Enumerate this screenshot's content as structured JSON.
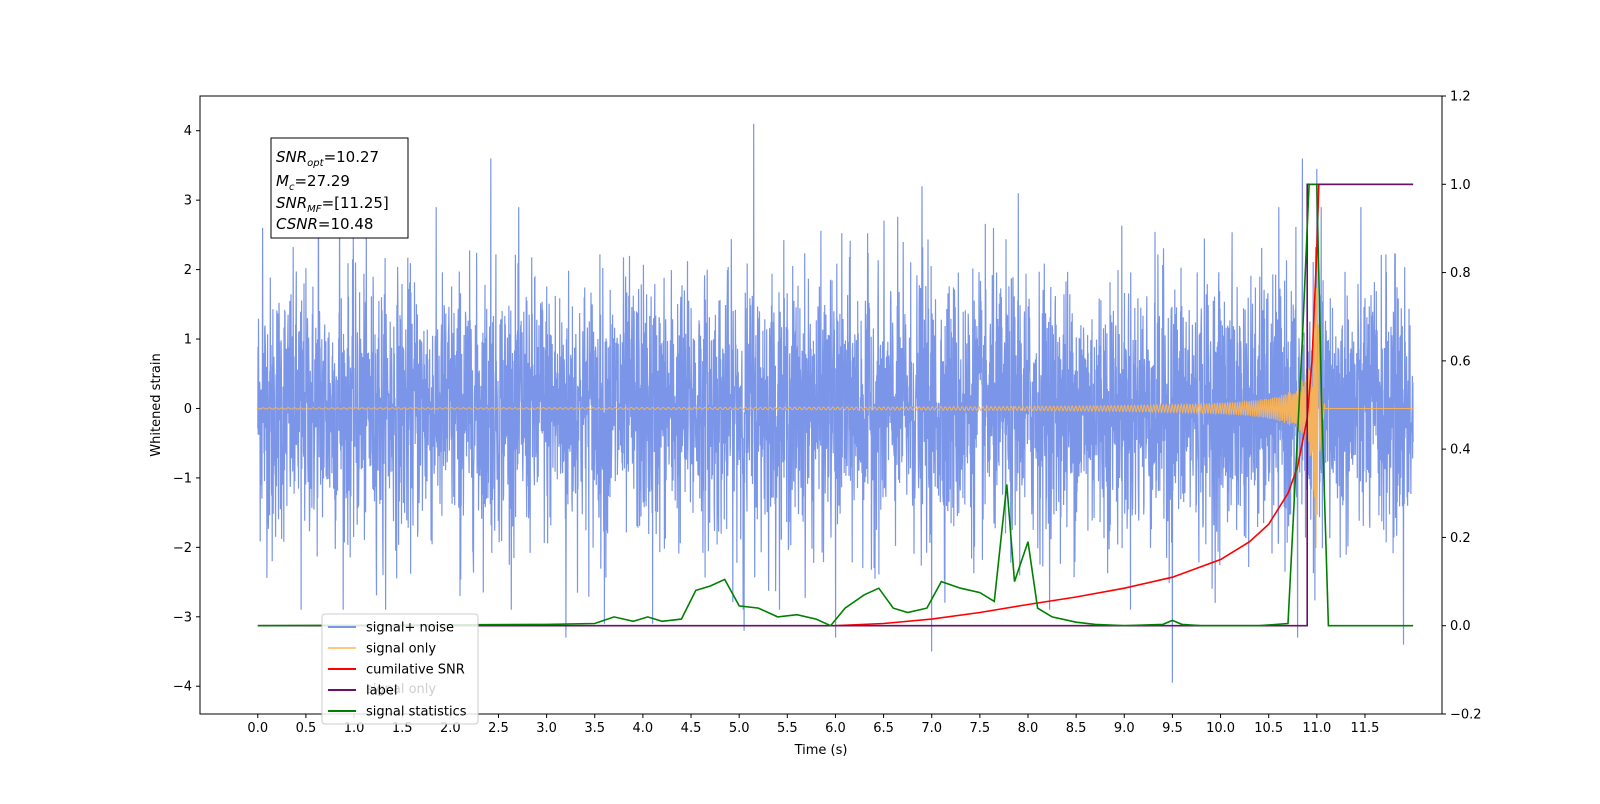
{
  "chart_data": {
    "type": "line",
    "xlabel": "Time (s)",
    "ylabel": "Whitened strain",
    "xlim": [
      -0.6,
      12.3
    ],
    "ylim": [
      -4.4,
      4.5
    ],
    "y2lim": [
      -0.2,
      1.2
    ],
    "x_ticks": [
      "0.0",
      "0.5",
      "1.0",
      "1.5",
      "2.0",
      "2.5",
      "3.0",
      "3.5",
      "4.0",
      "4.5",
      "5.0",
      "5.5",
      "6.0",
      "6.5",
      "7.0",
      "7.5",
      "8.0",
      "8.5",
      "9.0",
      "9.5",
      "10.0",
      "10.5",
      "11.0",
      "11.5"
    ],
    "y_ticks": [
      "4",
      "3",
      "2",
      "1",
      "0",
      "−1",
      "−2",
      "−3",
      "−4"
    ],
    "y2_ticks": [
      "1.2",
      "1.0",
      "0.8",
      "0.6",
      "0.4",
      "0.2",
      "0.0",
      "−0.2"
    ],
    "annotation": {
      "lines": [
        {
          "base": "SNR",
          "sub": "opt",
          "value": "=10.27"
        },
        {
          "base": "M",
          "sub": "c",
          "value": "=27.29"
        },
        {
          "base": "SNR",
          "sub": "MF",
          "value": "=[11.25]"
        },
        {
          "base": "CSNR",
          "sub": "",
          "value": "=10.48"
        }
      ]
    },
    "legend": {
      "placement": "lower-left",
      "entries": [
        {
          "label": "signal+ noise",
          "color": "#7b96e8"
        },
        {
          "label": "signal only",
          "color": "#ffc87a"
        },
        {
          "label": "cumilative SNR",
          "color": "#ff0000"
        },
        {
          "label": "label",
          "color": "#6a0f6a"
        },
        {
          "label": "signal statistics",
          "color": "#008000"
        }
      ],
      "hidden_text": "signal only"
    },
    "series": [
      {
        "name": "signal+ noise",
        "axis": "left",
        "color": "#7b96e8",
        "t_start": 0.0,
        "t_end": 12.0,
        "typical_envelope": 1.5,
        "spikes": [
          {
            "t": 0.05,
            "y": 2.6
          },
          {
            "t": 0.15,
            "y": -2.2
          },
          {
            "t": 0.45,
            "y": -2.9
          },
          {
            "t": 0.63,
            "y": 3.9
          },
          {
            "t": 0.85,
            "y": 3.1
          },
          {
            "t": 1.3,
            "y": -2.4
          },
          {
            "t": 2.1,
            "y": -2.7
          },
          {
            "t": 2.42,
            "y": 3.6
          },
          {
            "t": 3.2,
            "y": -3.3
          },
          {
            "t": 3.6,
            "y": -3.1
          },
          {
            "t": 4.1,
            "y": -3.1
          },
          {
            "t": 5.15,
            "y": 4.1
          },
          {
            "t": 5.05,
            "y": -3.2
          },
          {
            "t": 6.0,
            "y": -3.3
          },
          {
            "t": 6.9,
            "y": 3.2
          },
          {
            "t": 7.0,
            "y": -3.5
          },
          {
            "t": 7.9,
            "y": 3.1
          },
          {
            "t": 9.5,
            "y": -3.95
          },
          {
            "t": 10.85,
            "y": 3.6
          },
          {
            "t": 11.0,
            "y": 3.45
          },
          {
            "t": 10.8,
            "y": -3.3
          },
          {
            "t": 11.9,
            "y": -3.4
          }
        ]
      },
      {
        "name": "signal only",
        "axis": "left",
        "color": "#f5b25c",
        "t_start": 0.0,
        "t_end": 12.0,
        "merger_t": 11.0,
        "peak_amplitude": 2.8
      },
      {
        "name": "cumilative SNR",
        "axis": "right",
        "color": "#ff0000",
        "x": [
          6.0,
          6.5,
          7.0,
          7.5,
          8.0,
          8.5,
          9.0,
          9.5,
          10.0,
          10.3,
          10.5,
          10.7,
          10.8,
          10.9,
          10.95,
          11.0,
          11.02,
          12.0
        ],
        "y": [
          0.0,
          0.005,
          0.015,
          0.03,
          0.048,
          0.065,
          0.085,
          0.11,
          0.15,
          0.19,
          0.23,
          0.3,
          0.36,
          0.47,
          0.6,
          0.85,
          1.0,
          1.0
        ]
      },
      {
        "name": "label",
        "axis": "right",
        "color": "#6a0f6a",
        "x": [
          0.0,
          10.9,
          10.9,
          11.02,
          11.02,
          12.0
        ],
        "y": [
          0.0,
          0.0,
          1.0,
          1.0,
          1.0,
          1.0
        ]
      },
      {
        "name": "signal statistics",
        "axis": "right",
        "color": "#008000",
        "x": [
          0.0,
          3.0,
          3.5,
          3.7,
          3.9,
          4.05,
          4.2,
          4.4,
          4.55,
          4.7,
          4.85,
          5.0,
          5.2,
          5.4,
          5.6,
          5.8,
          5.95,
          6.1,
          6.3,
          6.45,
          6.6,
          6.75,
          6.95,
          7.1,
          7.3,
          7.5,
          7.65,
          7.78,
          7.86,
          8.0,
          8.1,
          8.25,
          8.5,
          8.7,
          9.0,
          9.4,
          9.5,
          9.6,
          9.8,
          10.0,
          10.4,
          10.7,
          10.85,
          10.92,
          11.0,
          11.05,
          11.12,
          12.0
        ],
        "y": [
          0.0,
          0.003,
          0.005,
          0.02,
          0.01,
          0.02,
          0.01,
          0.015,
          0.08,
          0.09,
          0.105,
          0.045,
          0.04,
          0.02,
          0.025,
          0.015,
          0.0,
          0.04,
          0.07,
          0.085,
          0.04,
          0.03,
          0.04,
          0.1,
          0.085,
          0.075,
          0.055,
          0.32,
          0.1,
          0.19,
          0.04,
          0.02,
          0.008,
          0.003,
          0.0,
          0.003,
          0.012,
          0.003,
          0.0,
          0.0,
          0.0,
          0.005,
          0.65,
          1.0,
          1.0,
          0.5,
          0.0,
          0.0
        ]
      }
    ]
  }
}
